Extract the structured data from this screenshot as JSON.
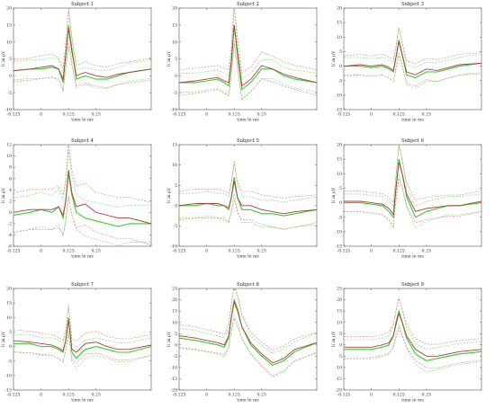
{
  "figure": {
    "colors": {
      "green_mean": "#33cc33",
      "green_band": "#66dd66",
      "red_mean": "#b23a3a",
      "red_band": "#e07a7a",
      "axis": "#555555",
      "grid": "#e6e6e6"
    }
  },
  "chart_data": [
    {
      "type": "line",
      "title": "Subject 1",
      "xlabel": "time in ms",
      "ylabel": "U in μV",
      "xlim": [
        -0.125,
        0.5
      ],
      "ylim": [
        -10,
        20
      ],
      "xticks": [
        -0.125,
        0,
        0.125,
        0.25
      ],
      "xtick_labels": [
        "-0.125",
        "0",
        "0.125",
        "0.25"
      ],
      "yticks": [
        -10,
        -5,
        0,
        5,
        10,
        15,
        20
      ],
      "ytick_labels": [
        "-10",
        "-5",
        "0",
        "5",
        "10",
        "15",
        "20"
      ],
      "grid": false,
      "series": [
        {
          "x": [
            -0.125,
            -0.05,
            0,
            0.05,
            0.08,
            0.1,
            0.112,
            0.125,
            0.14,
            0.16,
            0.2,
            0.25,
            0.3,
            0.35,
            0.4,
            0.5
          ],
          "mean": [
            1.5,
            2,
            2,
            2.5,
            2,
            -2,
            6,
            15,
            8,
            -1,
            0,
            -1,
            -1,
            0,
            1,
            2
          ],
          "spread": 2.5,
          "color": "green"
        },
        {
          "x": [
            -0.125,
            -0.05,
            0,
            0.05,
            0.08,
            0.1,
            0.112,
            0.125,
            0.14,
            0.16,
            0.2,
            0.25,
            0.3,
            0.35,
            0.4,
            0.5
          ],
          "mean": [
            1.5,
            2,
            2.5,
            3,
            2,
            -1,
            6,
            14,
            7,
            0,
            1,
            0,
            -0.5,
            0.5,
            1,
            2
          ],
          "spread": 3,
          "color": "red"
        }
      ]
    },
    {
      "type": "line",
      "title": "Subject 2",
      "xlabel": "time in ms",
      "ylabel": "U in μV",
      "xlim": [
        -0.125,
        0.5
      ],
      "ylim": [
        -10,
        20
      ],
      "xticks": [
        -0.125,
        0,
        0.125,
        0.25
      ],
      "xtick_labels": [
        "-0.125",
        "0",
        "0.125",
        "0.25"
      ],
      "yticks": [
        -10,
        -5,
        0,
        5,
        10,
        15,
        20
      ],
      "ytick_labels": [
        "-10",
        "-5",
        "0",
        "5",
        "10",
        "15",
        "20"
      ],
      "grid": false,
      "series": [
        {
          "x": [
            -0.125,
            -0.05,
            0,
            0.05,
            0.08,
            0.1,
            0.112,
            0.125,
            0.14,
            0.16,
            0.2,
            0.25,
            0.3,
            0.35,
            0.4,
            0.5
          ],
          "mean": [
            -2,
            -2,
            -1.5,
            -1,
            -2,
            -3,
            4,
            15,
            6,
            -4,
            -2,
            2,
            2,
            0,
            -1,
            -2
          ],
          "spread": 2.5,
          "color": "green"
        },
        {
          "x": [
            -0.125,
            -0.05,
            0,
            0.05,
            0.08,
            0.1,
            0.112,
            0.125,
            0.14,
            0.16,
            0.2,
            0.25,
            0.3,
            0.35,
            0.4,
            0.5
          ],
          "mean": [
            -2,
            -1.5,
            -1,
            -0.5,
            -1.5,
            -2,
            4,
            15,
            7,
            -3,
            -1,
            3,
            2,
            0.5,
            -0.5,
            -2
          ],
          "spread": 3.5,
          "color": "red"
        }
      ]
    },
    {
      "type": "line",
      "title": "Subject 3",
      "xlabel": "time in ms",
      "ylabel": "U in μV",
      "xlim": [
        -0.125,
        0.5
      ],
      "ylim": [
        -15,
        20
      ],
      "xticks": [
        -0.125,
        0,
        0.125,
        0.25
      ],
      "xtick_labels": [
        "-0.125",
        "0",
        "0.125",
        "0.25"
      ],
      "yticks": [
        -15,
        -10,
        -5,
        0,
        5,
        10,
        15,
        20
      ],
      "ytick_labels": [
        "-15",
        "-10",
        "-5",
        "0",
        "5",
        "10",
        "15",
        "20"
      ],
      "grid": false,
      "series": [
        {
          "x": [
            -0.125,
            -0.05,
            0,
            0.05,
            0.08,
            0.1,
            0.112,
            0.125,
            0.14,
            0.16,
            0.2,
            0.25,
            0.3,
            0.35,
            0.4,
            0.5
          ],
          "mean": [
            0,
            0,
            -0.5,
            0,
            -1,
            -2,
            3,
            9,
            4,
            -3,
            -4,
            -2,
            -2,
            -1,
            0,
            1
          ],
          "spread": 3,
          "color": "green"
        },
        {
          "x": [
            -0.125,
            -0.05,
            0,
            0.05,
            0.08,
            0.1,
            0.112,
            0.125,
            0.14,
            0.16,
            0.2,
            0.25,
            0.3,
            0.35,
            0.4,
            0.5
          ],
          "mean": [
            0,
            0.5,
            0,
            0.5,
            -0.5,
            -1.5,
            3,
            8.5,
            4,
            -2,
            -3,
            -1,
            -1.5,
            -0.5,
            0.5,
            1
          ],
          "spread": 3.5,
          "color": "red"
        }
      ]
    },
    {
      "type": "line",
      "title": "Subject 4",
      "xlabel": "time in ms",
      "ylabel": "U in μV",
      "xlim": [
        -0.125,
        0.5
      ],
      "ylim": [
        -6,
        12
      ],
      "xticks": [
        -0.125,
        0,
        0.125,
        0.25
      ],
      "xtick_labels": [
        "-0.125",
        "0",
        "0.125",
        "0.25"
      ],
      "yticks": [
        -6,
        -4,
        -2,
        0,
        2,
        4,
        6,
        8,
        10,
        12
      ],
      "ytick_labels": [
        "-6",
        "-4",
        "-2",
        "0",
        "2",
        "4",
        "6",
        "8",
        "10",
        "12"
      ],
      "grid": false,
      "series": [
        {
          "x": [
            -0.125,
            -0.05,
            0,
            0.05,
            0.08,
            0.1,
            0.112,
            0.125,
            0.14,
            0.16,
            0.2,
            0.25,
            0.3,
            0.35,
            0.4,
            0.5
          ],
          "mean": [
            -0.5,
            0,
            0.5,
            0,
            1,
            -1,
            2,
            7,
            3,
            0,
            -1,
            -1.5,
            -2,
            -2.5,
            -2,
            -2
          ],
          "spread": 3,
          "color": "green"
        },
        {
          "x": [
            -0.125,
            -0.05,
            0,
            0.05,
            0.08,
            0.1,
            0.112,
            0.125,
            0.14,
            0.16,
            0.2,
            0.25,
            0.3,
            0.35,
            0.4,
            0.5
          ],
          "mean": [
            0,
            0.5,
            0.5,
            0.5,
            1,
            -0.5,
            2,
            7.5,
            3.5,
            1,
            1.5,
            0,
            -0.5,
            -1,
            -1,
            -2
          ],
          "spread": 3.5,
          "color": "red"
        }
      ]
    },
    {
      "type": "line",
      "title": "Subject 5",
      "xlabel": "time in ms",
      "ylabel": "U in μV",
      "xlim": [
        -0.125,
        0.5
      ],
      "ylim": [
        -10,
        15
      ],
      "xticks": [
        -0.125,
        0,
        0.125,
        0.25
      ],
      "xtick_labels": [
        "-0.125",
        "0",
        "0.125",
        "0.25"
      ],
      "yticks": [
        -10,
        -5,
        0,
        5,
        10,
        15
      ],
      "ytick_labels": [
        "-10",
        "-5",
        "0",
        "5",
        "10",
        "15"
      ],
      "grid": false,
      "series": [
        {
          "x": [
            -0.125,
            -0.05,
            0,
            0.05,
            0.08,
            0.1,
            0.112,
            0.125,
            0.14,
            0.16,
            0.2,
            0.25,
            0.3,
            0.35,
            0.4,
            0.5
          ],
          "mean": [
            0,
            0,
            0.5,
            0,
            0,
            -1,
            2,
            7,
            2,
            -1,
            -1,
            -2,
            -2,
            -2.5,
            -2,
            -1
          ],
          "spread": 3,
          "color": "green"
        },
        {
          "x": [
            -0.125,
            -0.05,
            0,
            0.05,
            0.08,
            0.1,
            0.112,
            0.125,
            0.14,
            0.16,
            0.2,
            0.25,
            0.3,
            0.35,
            0.4,
            0.5
          ],
          "mean": [
            0,
            0.5,
            0.5,
            0.5,
            0,
            -0.5,
            2,
            6,
            2,
            0,
            0,
            -1,
            -1.5,
            -2,
            -1.5,
            -1
          ],
          "spread": 3.5,
          "color": "red"
        }
      ]
    },
    {
      "type": "line",
      "title": "Subject 6",
      "xlabel": "time in ms",
      "ylabel": "U in μV",
      "xlim": [
        -0.125,
        0.5
      ],
      "ylim": [
        -15,
        20
      ],
      "xticks": [
        -0.125,
        0,
        0.125,
        0.25
      ],
      "xtick_labels": [
        "-0.125",
        "0",
        "0.125",
        "0.25"
      ],
      "yticks": [
        -15,
        -10,
        -5,
        0,
        5,
        10,
        15,
        20
      ],
      "ytick_labels": [
        "-15",
        "-10",
        "-5",
        "0",
        "5",
        "10",
        "15",
        "20"
      ],
      "grid": false,
      "series": [
        {
          "x": [
            -0.125,
            -0.05,
            0,
            0.05,
            0.08,
            0.1,
            0.112,
            0.125,
            0.14,
            0.16,
            0.2,
            0.25,
            0.3,
            0.35,
            0.4,
            0.5
          ],
          "mean": [
            0,
            0,
            -0.5,
            -1,
            -3,
            -5,
            5,
            15,
            10,
            2,
            -5,
            -3,
            -2,
            -1,
            -1,
            0
          ],
          "spread": 3,
          "color": "green"
        },
        {
          "x": [
            -0.125,
            -0.05,
            0,
            0.05,
            0.08,
            0.1,
            0.112,
            0.125,
            0.14,
            0.16,
            0.2,
            0.25,
            0.3,
            0.35,
            0.4,
            0.5
          ],
          "mean": [
            0.5,
            0.5,
            0,
            -0.5,
            -2,
            -4,
            5,
            14,
            10,
            3,
            -3,
            -2,
            -1.5,
            -1,
            -1,
            0.5
          ],
          "spread": 3.5,
          "color": "red"
        }
      ]
    },
    {
      "type": "line",
      "title": "Subject 7",
      "xlabel": "time in ms",
      "ylabel": "U in μV",
      "xlim": [
        -0.125,
        0.5
      ],
      "ylim": [
        -15,
        20
      ],
      "xticks": [
        -0.125,
        0,
        0.125,
        0.25
      ],
      "xtick_labels": [
        "-0.125",
        "0",
        "0.125",
        "0.25"
      ],
      "yticks": [
        -15,
        -10,
        -5,
        0,
        5,
        10,
        15,
        20
      ],
      "ytick_labels": [
        "-15",
        "-10",
        "-5",
        "0",
        "5",
        "10",
        "15",
        "20"
      ],
      "grid": false,
      "series": [
        {
          "x": [
            -0.125,
            -0.05,
            0,
            0.05,
            0.08,
            0.1,
            0.112,
            0.125,
            0.14,
            0.16,
            0.2,
            0.25,
            0.3,
            0.35,
            0.4,
            0.5
          ],
          "mean": [
            1,
            1,
            0,
            0,
            -1,
            -2,
            2,
            10,
            -2,
            -4,
            -1,
            0,
            -1,
            -2,
            -2,
            0
          ],
          "spread": 3,
          "color": "green"
        },
        {
          "x": [
            -0.125,
            -0.05,
            0,
            0.05,
            0.08,
            0.1,
            0.112,
            0.125,
            0.14,
            0.16,
            0.2,
            0.25,
            0.3,
            0.35,
            0.4,
            0.5
          ],
          "mean": [
            2,
            1.5,
            1,
            0.5,
            -0.5,
            -1.5,
            2,
            9,
            -1,
            -2,
            1,
            1.5,
            0,
            -1,
            -1,
            0.5
          ],
          "spread": 3.5,
          "color": "red"
        }
      ]
    },
    {
      "type": "line",
      "title": "Subject 8",
      "xlabel": "time in ms",
      "ylabel": "U in μV",
      "xlim": [
        -0.125,
        0.5
      ],
      "ylim": [
        -20,
        25
      ],
      "xticks": [
        -0.125,
        0,
        0.125,
        0.25
      ],
      "xtick_labels": [
        "-0.125",
        "0",
        "0.125",
        "0.25"
      ],
      "yticks": [
        -20,
        -15,
        -10,
        -5,
        0,
        5,
        10,
        15,
        20,
        25
      ],
      "ytick_labels": [
        "-20",
        "-15",
        "-10",
        "-5",
        "0",
        "5",
        "10",
        "15",
        "20",
        "25"
      ],
      "grid": false,
      "series": [
        {
          "x": [
            -0.125,
            -0.05,
            0,
            0.05,
            0.08,
            0.1,
            0.112,
            0.125,
            0.14,
            0.16,
            0.2,
            0.25,
            0.3,
            0.35,
            0.4,
            0.5
          ],
          "mean": [
            3,
            2,
            1,
            0,
            -1,
            3,
            12,
            20,
            16,
            8,
            0,
            -5,
            -9,
            -7,
            -3,
            1
          ],
          "spread": 4,
          "color": "green"
        },
        {
          "x": [
            -0.125,
            -0.05,
            0,
            0.05,
            0.08,
            0.1,
            0.112,
            0.125,
            0.14,
            0.16,
            0.2,
            0.25,
            0.3,
            0.35,
            0.4,
            0.5
          ],
          "mean": [
            4,
            3,
            2,
            1,
            0,
            4,
            12,
            19,
            15,
            8,
            1,
            -4,
            -8,
            -6,
            -2,
            1
          ],
          "spread": 4.5,
          "color": "red"
        }
      ]
    },
    {
      "type": "line",
      "title": "Subject 9",
      "xlabel": "time in ms",
      "ylabel": "U in μV",
      "xlim": [
        -0.125,
        0.5
      ],
      "ylim": [
        -20,
        25
      ],
      "xticks": [
        -0.125,
        0,
        0.125,
        0.25
      ],
      "xtick_labels": [
        "-0.125",
        "0",
        "0.125",
        "0.25"
      ],
      "yticks": [
        -20,
        -15,
        -10,
        -5,
        0,
        5,
        10,
        15,
        20,
        25
      ],
      "ytick_labels": [
        "-20",
        "-15",
        "-10",
        "-5",
        "0",
        "5",
        "10",
        "15",
        "20",
        "25"
      ],
      "grid": false,
      "series": [
        {
          "x": [
            -0.125,
            -0.05,
            0,
            0.05,
            0.08,
            0.1,
            0.112,
            0.125,
            0.14,
            0.16,
            0.2,
            0.25,
            0.3,
            0.35,
            0.4,
            0.5
          ],
          "mean": [
            -2,
            -2,
            -2,
            -1,
            0,
            4,
            10,
            15,
            10,
            3,
            -4,
            -7,
            -6,
            -5,
            -4,
            -3
          ],
          "spread": 4,
          "color": "green"
        },
        {
          "x": [
            -0.125,
            -0.05,
            0,
            0.05,
            0.08,
            0.1,
            0.112,
            0.125,
            0.14,
            0.16,
            0.2,
            0.25,
            0.3,
            0.35,
            0.4,
            0.5
          ],
          "mean": [
            -1,
            -1,
            -1,
            0,
            1,
            4,
            9,
            14,
            10,
            4,
            -2,
            -5,
            -5,
            -4,
            -3,
            -2
          ],
          "spread": 4.5,
          "color": "red"
        }
      ]
    }
  ]
}
